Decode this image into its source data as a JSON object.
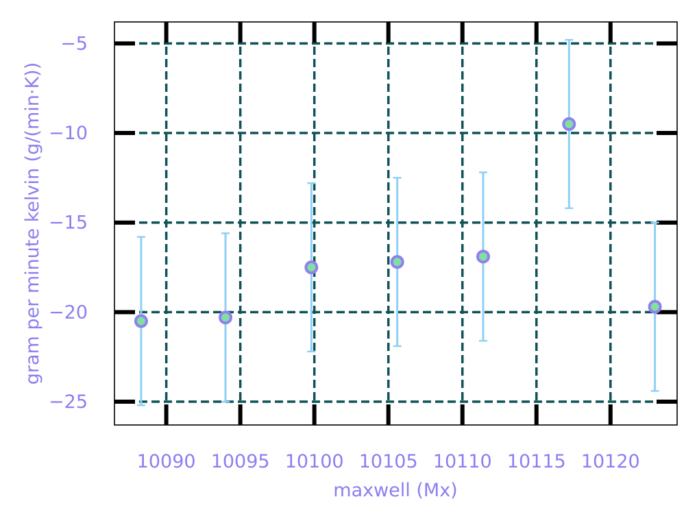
{
  "chart_data": {
    "type": "scatter",
    "xlabel": "maxwell (Mx)",
    "ylabel": "gram per minute kelvin (g/(min·K))",
    "xlim": [
      10086.5,
      10124.5
    ],
    "ylim": [
      -26.3,
      -3.8
    ],
    "xticks": [
      10090,
      10095,
      10100,
      10105,
      10110,
      10115,
      10120
    ],
    "yticks": [
      -5,
      -10,
      -15,
      -20,
      -25
    ],
    "grid": true,
    "points": [
      {
        "x": 10088.3,
        "y": -20.5,
        "err": 4.7
      },
      {
        "x": 10094.0,
        "y": -20.3,
        "err": 4.7
      },
      {
        "x": 10099.8,
        "y": -17.5,
        "err": 4.7
      },
      {
        "x": 10105.6,
        "y": -17.2,
        "err": 4.7
      },
      {
        "x": 10111.4,
        "y": -16.9,
        "err": 4.7
      },
      {
        "x": 10117.2,
        "y": -9.5,
        "err": 4.7
      },
      {
        "x": 10123.0,
        "y": -19.7,
        "err": 4.7
      }
    ],
    "colors": {
      "grid": "#0f5257",
      "marker_face": "#7fe0a0",
      "marker_edge": "#9080ee",
      "errorbar": "#8fd0f5",
      "text": "#8b7ff0",
      "tick": "#000000"
    }
  }
}
